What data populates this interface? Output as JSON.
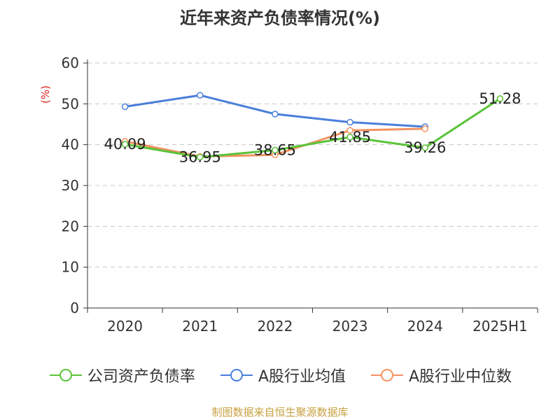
{
  "chart_data": {
    "type": "line",
    "title": "近年来资产负债率情况(%)",
    "ylabel": "(%)",
    "xlabel": "",
    "categories": [
      "2020",
      "2021",
      "2022",
      "2023",
      "2024",
      "2025H1"
    ],
    "ylim": [
      0,
      60
    ],
    "yticks": [
      0,
      10,
      20,
      30,
      40,
      50,
      60
    ],
    "grid": true,
    "legend_position": "bottom",
    "series": [
      {
        "name": "公司资产负债率",
        "color": "#5ac33a",
        "values": [
          40.09,
          36.95,
          38.65,
          41.85,
          39.26,
          51.28
        ],
        "show_labels": true
      },
      {
        "name": "A股行业均值",
        "color": "#4a7fdb",
        "values": [
          49.3,
          52.1,
          47.5,
          45.5,
          44.4,
          null
        ],
        "show_labels": false
      },
      {
        "name": "A股行业中位数",
        "color": "#f39260",
        "values": [
          40.8,
          37.1,
          37.5,
          43.5,
          43.9,
          null
        ],
        "show_labels": false
      }
    ]
  },
  "source_text": "制图数据来自恒生聚源数据库"
}
